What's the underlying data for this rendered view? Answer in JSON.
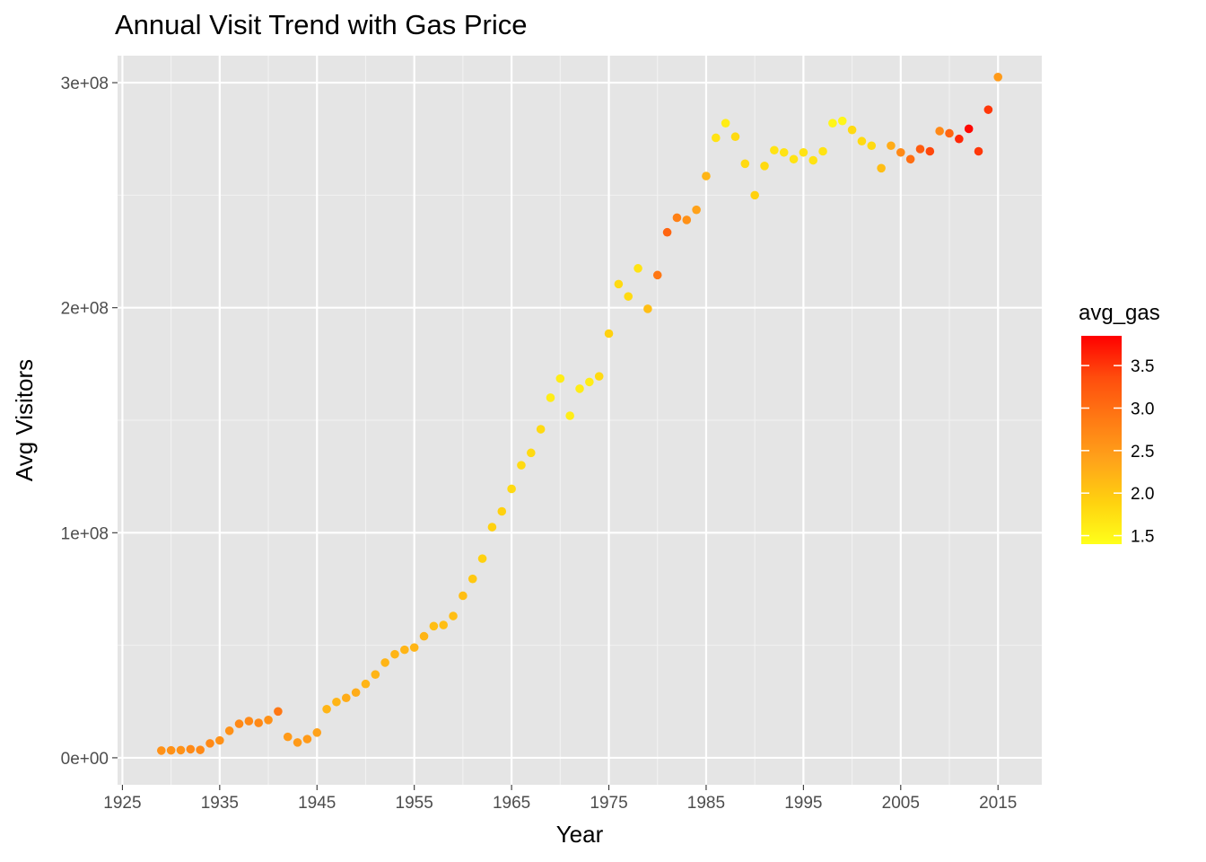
{
  "chart_data": {
    "type": "scatter",
    "title": "Annual Visit Trend with Gas Price",
    "xlabel": "Year",
    "ylabel": "Avg Visitors",
    "xlim": [
      1924.5,
      2019.5
    ],
    "ylim": [
      -12000000,
      312000000
    ],
    "x_ticks": [
      1925,
      1935,
      1945,
      1955,
      1965,
      1975,
      1985,
      1995,
      2005,
      2015
    ],
    "x_tick_labels": [
      "1925",
      "1935",
      "1945",
      "1955",
      "1965",
      "1975",
      "1985",
      "1995",
      "2005",
      "2015"
    ],
    "x_minor_ticks": [
      1930,
      1940,
      1950,
      1960,
      1970,
      1980,
      1990,
      2000,
      2010
    ],
    "y_ticks": [
      0,
      100000000,
      200000000,
      300000000
    ],
    "y_tick_labels": [
      "0e+00",
      "1e+08",
      "2e+08",
      "3e+08"
    ],
    "y_minor_ticks": [
      50000000,
      150000000,
      250000000
    ],
    "grid": true,
    "background": "#e5e5e5",
    "legend": {
      "title": "avg_gas",
      "placement": "right",
      "type": "colorbar",
      "range": [
        1.4,
        3.85
      ],
      "ticks": [
        1.5,
        2.0,
        2.5,
        3.0,
        3.5
      ],
      "tick_labels": [
        "1.5",
        "2.0",
        "2.5",
        "3.0",
        "3.5"
      ],
      "colors": [
        "#ffff1a",
        "#ffd20f",
        "#ffa41a",
        "#ff7a14",
        "#ff4d0d",
        "#ff0000"
      ]
    },
    "series": [
      {
        "x": [
          1929,
          1930,
          1931,
          1932,
          1933,
          1934,
          1935,
          1936,
          1937,
          1938,
          1939,
          1940,
          1941,
          1942,
          1943,
          1944,
          1945,
          1946,
          1947,
          1948,
          1949,
          1950,
          1951,
          1952,
          1953,
          1954,
          1955,
          1956,
          1957,
          1958,
          1959,
          1960,
          1961,
          1962,
          1963,
          1964,
          1965,
          1966,
          1967,
          1968,
          1969,
          1970,
          1971,
          1972,
          1973,
          1974,
          1975,
          1976,
          1977,
          1978,
          1979,
          1980,
          1981,
          1982,
          1983,
          1984,
          1985,
          1986,
          1987,
          1988,
          1989,
          1990,
          1991,
          1992,
          1993,
          1994,
          1995,
          1996,
          1997,
          1998,
          1999,
          2000,
          2001,
          2002,
          2003,
          2004,
          2005,
          2006,
          2007,
          2008,
          2009,
          2010,
          2011,
          2012,
          2013,
          2014,
          2015
        ],
        "y": [
          3200000,
          3300000,
          3400000,
          3800000,
          3500000,
          6400000,
          7700000,
          12000000,
          15100000,
          16300000,
          15500000,
          16800000,
          20600000,
          9300000,
          6800000,
          8300000,
          11200000,
          21600000,
          24800000,
          26600000,
          29000000,
          32800000,
          37000000,
          42300000,
          46000000,
          48000000,
          49000000,
          54000000,
          58500000,
          59000000,
          63000000,
          72000000,
          79500000,
          88500000,
          102500000,
          109500000,
          119500000,
          130000000,
          135500000,
          146000000,
          160000000,
          168500000,
          152000000,
          164000000,
          167000000,
          169500000,
          188500000,
          210500000,
          205000000,
          217500000,
          199500000,
          214500000,
          233500000,
          240000000,
          239000000,
          243500000,
          258500000,
          275500000,
          282000000,
          276000000,
          264000000,
          250000000,
          263000000,
          270000000,
          269000000,
          266000000,
          269000000,
          265500000,
          269500000,
          282000000,
          283000000,
          279000000,
          274000000,
          272000000,
          262000000,
          272000000,
          269000000,
          266000000,
          270500000,
          269500000,
          278500000,
          277500000,
          275000000,
          279500000,
          269500000,
          288000000,
          302500000
        ],
        "avg_gas": [
          2.6,
          2.6,
          2.6,
          2.7,
          2.7,
          2.7,
          2.6,
          2.6,
          2.7,
          2.7,
          2.7,
          2.6,
          2.9,
          2.5,
          2.5,
          2.5,
          2.4,
          2.2,
          2.2,
          2.3,
          2.3,
          2.2,
          2.2,
          2.2,
          2.2,
          2.2,
          2.2,
          2.2,
          2.1,
          2.1,
          2.1,
          2.1,
          2.0,
          1.9,
          1.9,
          1.9,
          1.8,
          1.8,
          1.8,
          1.8,
          1.6,
          1.6,
          1.6,
          1.6,
          1.6,
          1.8,
          1.9,
          1.8,
          1.8,
          1.7,
          2.1,
          2.9,
          3.1,
          2.8,
          2.6,
          2.4,
          2.2,
          1.7,
          1.6,
          1.8,
          1.8,
          1.9,
          1.8,
          1.7,
          1.7,
          1.7,
          1.7,
          1.7,
          1.7,
          1.5,
          1.5,
          1.8,
          1.8,
          1.8,
          2.1,
          2.3,
          2.7,
          3.0,
          3.2,
          3.4,
          2.7,
          3.1,
          3.6,
          3.8,
          3.5,
          3.5,
          2.5
        ]
      }
    ]
  }
}
